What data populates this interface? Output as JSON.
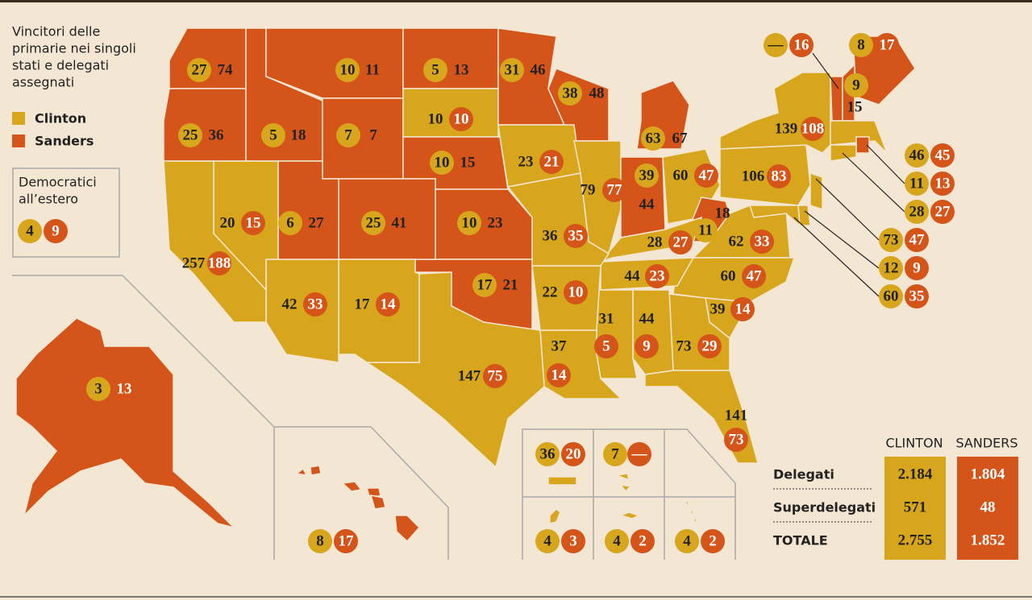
{
  "legend": {
    "title": [
      "Vincitori delle",
      "primarie nei singoli",
      "stati e delegati",
      "assegnati"
    ],
    "items": [
      {
        "label": "Clinton",
        "color": "#d8a61c"
      },
      {
        "label": "Sanders",
        "color": "#d4541a"
      }
    ]
  },
  "abroad": {
    "title": [
      "Democratici",
      "all’estero"
    ],
    "delegates": [
      4,
      9
    ]
  },
  "regions": [
    {
      "winner": 1,
      "delegates": [
        27,
        74
      ]
    },
    {
      "winner": 1,
      "delegates": [
        25,
        36
      ]
    },
    {
      "winner": 1,
      "delegates": [
        5,
        18
      ]
    },
    {
      "winner": 1,
      "delegates": [
        10,
        11
      ]
    },
    {
      "winner": 1,
      "delegates": [
        7,
        7
      ]
    },
    {
      "winner": 1,
      "delegates": [
        5,
        13
      ]
    },
    {
      "winner": 0,
      "delegates": [
        10,
        10
      ]
    },
    {
      "winner": 1,
      "delegates": [
        10,
        15
      ]
    },
    {
      "winner": 1,
      "delegates": [
        31,
        46
      ]
    },
    {
      "winner": 1,
      "delegates": [
        38,
        48
      ]
    },
    {
      "winner": 1,
      "delegates": [
        63,
        67
      ]
    },
    {
      "winner": 0,
      "delegates": [
        23,
        21
      ]
    },
    {
      "winner": 0,
      "delegates": [
        79,
        77
      ]
    },
    {
      "winner": 1,
      "delegates": [
        39,
        44
      ]
    },
    {
      "winner": 0,
      "delegates": [
        60,
        47
      ]
    },
    {
      "winner": 1,
      "delegates": [
        11,
        18
      ]
    },
    {
      "winner": 0,
      "delegates": [
        28,
        27
      ]
    },
    {
      "winner": 0,
      "delegates": [
        106,
        83
      ]
    },
    {
      "winner": 0,
      "delegates": [
        139,
        108
      ]
    },
    {
      "winner": 0,
      "delegates": [
        62,
        33
      ]
    },
    {
      "winner": 0,
      "delegates": [
        60,
        47
      ]
    },
    {
      "winner": 0,
      "delegates": [
        44,
        23
      ]
    },
    {
      "winner": 0,
      "delegates": [
        39,
        14
      ]
    },
    {
      "winner": 0,
      "delegates": [
        73,
        29
      ]
    },
    {
      "winner": 0,
      "delegates": [
        44,
        9
      ]
    },
    {
      "winner": 0,
      "delegates": [
        31,
        5
      ]
    },
    {
      "winner": 0,
      "delegates": [
        141,
        73
      ]
    },
    {
      "winner": 0,
      "delegates": [
        37,
        14
      ]
    },
    {
      "winner": 0,
      "delegates": [
        22,
        10
      ]
    },
    {
      "winner": 0,
      "delegates": [
        36,
        35
      ]
    },
    {
      "winner": 1,
      "delegates": [
        10,
        23
      ]
    },
    {
      "winner": 1,
      "delegates": [
        17,
        21
      ]
    },
    {
      "winner": 0,
      "delegates": [
        147,
        75
      ]
    },
    {
      "winner": 1,
      "delegates": [
        25,
        41
      ]
    },
    {
      "winner": 0,
      "delegates": [
        17,
        14
      ]
    },
    {
      "winner": 0,
      "delegates": [
        42,
        33
      ]
    },
    {
      "winner": 1,
      "delegates": [
        6,
        27
      ]
    },
    {
      "winner": 0,
      "delegates": [
        20,
        15
      ]
    },
    {
      "winner": 0,
      "delegates": [
        257,
        188
      ]
    },
    {
      "winner": 1,
      "delegates": [
        "—",
        16
      ]
    },
    {
      "winner": 1,
      "delegates": [
        9,
        15
      ]
    },
    {
      "winner": 1,
      "delegates": [
        8,
        17
      ]
    },
    {
      "winner": 0,
      "delegates": [
        46,
        45
      ]
    },
    {
      "winner": 1,
      "delegates": [
        11,
        13
      ]
    },
    {
      "winner": 0,
      "delegates": [
        28,
        27
      ]
    },
    {
      "winner": 0,
      "delegates": [
        73,
        47
      ]
    },
    {
      "winner": 0,
      "delegates": [
        12,
        9
      ]
    },
    {
      "winner": 0,
      "delegates": [
        60,
        35
      ]
    },
    {
      "winner": 1,
      "delegates": [
        3,
        13
      ]
    },
    {
      "winner": 1,
      "delegates": [
        8,
        17
      ]
    },
    {
      "winner": 0,
      "delegates": [
        36,
        20
      ]
    },
    {
      "winner": 0,
      "delegates": [
        7,
        "—"
      ]
    },
    {
      "winner": 0,
      "delegates": [
        4,
        3
      ]
    },
    {
      "winner": 0,
      "delegates": [
        4,
        2
      ]
    },
    {
      "winner": 0,
      "delegates": [
        4,
        2
      ]
    }
  ],
  "table": {
    "header": [
      "CLINTON",
      "SANDERS"
    ],
    "rows": [
      [
        "Delegati",
        "2.184",
        "1.804"
      ],
      [
        "Superdelegati",
        "571",
        "48"
      ],
      [
        "TOTALE",
        "2.755",
        "1.852"
      ]
    ]
  }
}
